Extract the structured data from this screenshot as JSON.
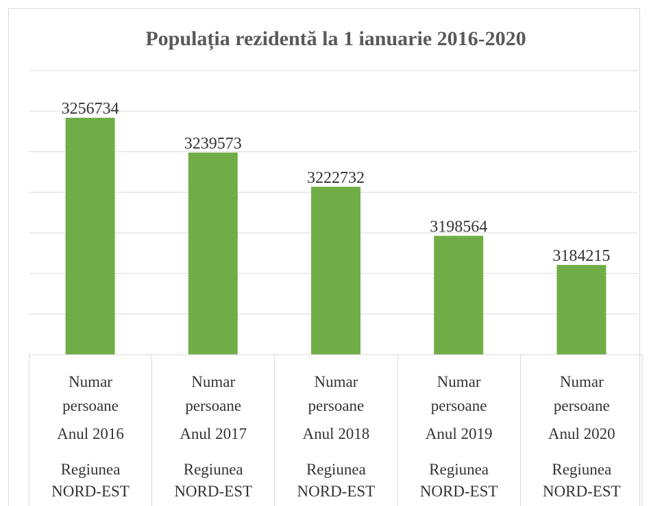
{
  "chart_data": {
    "type": "bar",
    "title": "Populația rezidentă la 1 ianuarie 2016-2020",
    "categories": [
      [
        "Numar persoane",
        "Anul 2016",
        "Regiunea NORD-EST"
      ],
      [
        "Numar persoane",
        "Anul 2017",
        "Regiunea NORD-EST"
      ],
      [
        "Numar persoane",
        "Anul 2018",
        "Regiunea NORD-EST"
      ],
      [
        "Numar persoane",
        "Anul 2019",
        "Regiunea NORD-EST"
      ],
      [
        "Numar persoane",
        "Anul 2020",
        "Regiunea NORD-EST"
      ]
    ],
    "values": [
      3256734,
      3239573,
      3222732,
      3198564,
      3184215
    ],
    "color": "#70ad47",
    "ylim": [
      3140000,
      3280000
    ],
    "yticks": [
      3140000,
      3160000,
      3180000,
      3200000,
      3220000,
      3240000,
      3260000,
      3280000
    ],
    "grid": true
  }
}
